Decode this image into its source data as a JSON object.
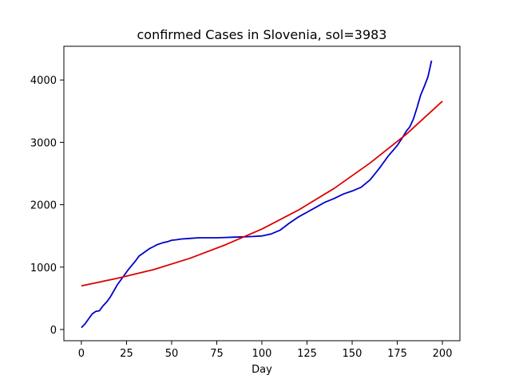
{
  "chart_data": {
    "type": "line",
    "title": "confirmed Cases in Slovenia, sol=3983",
    "xlabel": "Day",
    "ylabel": "",
    "xlim": [
      -9.7,
      209.7
    ],
    "ylim": [
      -180,
      4540
    ],
    "xticks": [
      0,
      25,
      50,
      75,
      100,
      125,
      150,
      175,
      200
    ],
    "yticks": [
      0,
      1000,
      2000,
      3000,
      4000
    ],
    "grid": false,
    "series": [
      {
        "color": "#0000cc",
        "x": [
          0,
          2,
          4,
          6,
          8,
          10,
          12,
          14,
          16,
          18,
          20,
          22,
          24,
          26,
          28,
          30,
          32,
          34,
          36,
          38,
          40,
          42,
          45,
          48,
          50,
          53,
          55,
          60,
          65,
          70,
          75,
          80,
          85,
          90,
          95,
          100,
          105,
          110,
          115,
          120,
          125,
          130,
          135,
          140,
          145,
          150,
          155,
          160,
          165,
          170,
          175,
          178,
          180,
          182,
          184,
          186,
          188,
          190,
          192,
          194
        ],
        "y": [
          30,
          90,
          170,
          250,
          290,
          300,
          380,
          440,
          520,
          620,
          720,
          800,
          880,
          960,
          1030,
          1100,
          1180,
          1220,
          1260,
          1300,
          1330,
          1360,
          1390,
          1410,
          1430,
          1440,
          1450,
          1460,
          1470,
          1470,
          1470,
          1475,
          1480,
          1485,
          1490,
          1500,
          1530,
          1590,
          1700,
          1800,
          1880,
          1960,
          2040,
          2100,
          2170,
          2220,
          2280,
          2400,
          2580,
          2780,
          2950,
          3080,
          3180,
          3250,
          3380,
          3560,
          3760,
          3900,
          4050,
          4310
        ]
      },
      {
        "color": "#dd0000",
        "x": [
          0,
          20,
          40,
          60,
          80,
          100,
          120,
          140,
          160,
          180,
          200
        ],
        "y": [
          700,
          820,
          960,
          1140,
          1360,
          1610,
          1910,
          2260,
          2670,
          3130,
          3660
        ]
      }
    ]
  }
}
